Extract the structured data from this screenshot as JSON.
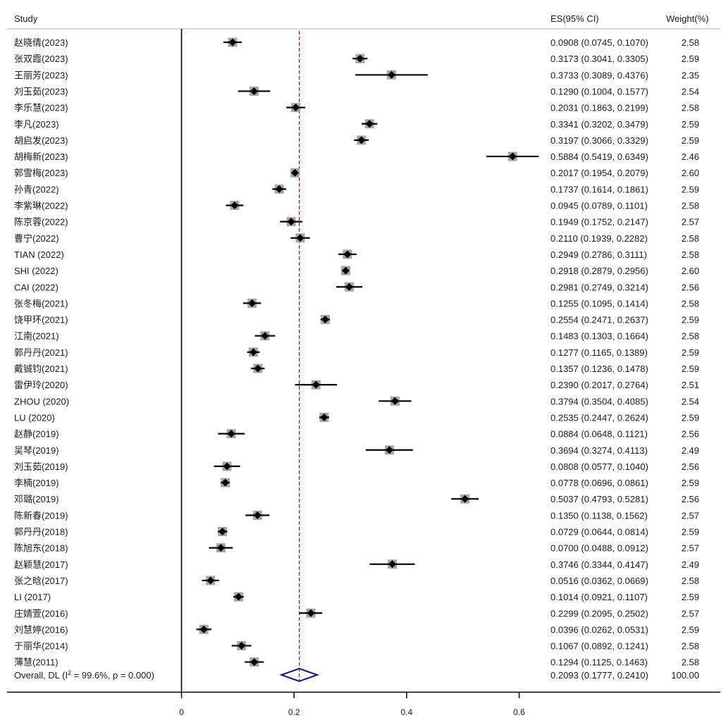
{
  "chart_data": {
    "type": "forest",
    "header": {
      "study": "Study",
      "es": "ES(95% CI)",
      "weight": "Weight(%)"
    },
    "x_ticks": [
      0,
      0.2,
      0.4,
      0.6
    ],
    "xlim": [
      0,
      0.65
    ],
    "reference_line": 0.2093,
    "studies": [
      {
        "label": "赵晓倩(2023)",
        "es": 0.0908,
        "lo": 0.0745,
        "hi": 0.107,
        "ci_text": "0.0908 (0.0745, 0.1070)",
        "weight": "2.58"
      },
      {
        "label": "张双霞(2023)",
        "es": 0.3173,
        "lo": 0.3041,
        "hi": 0.3305,
        "ci_text": "0.3173 (0.3041, 0.3305)",
        "weight": "2.59"
      },
      {
        "label": "王丽芳(2023)",
        "es": 0.3733,
        "lo": 0.3089,
        "hi": 0.4376,
        "ci_text": "0.3733 (0.3089, 0.4376)",
        "weight": "2.35"
      },
      {
        "label": "刘玉茹(2023)",
        "es": 0.129,
        "lo": 0.1004,
        "hi": 0.1577,
        "ci_text": "0.1290 (0.1004, 0.1577)",
        "weight": "2.54"
      },
      {
        "label": "李乐慧(2023)",
        "es": 0.2031,
        "lo": 0.1863,
        "hi": 0.2199,
        "ci_text": "0.2031 (0.1863, 0.2199)",
        "weight": "2.58"
      },
      {
        "label": "李凡(2023)",
        "es": 0.3341,
        "lo": 0.3202,
        "hi": 0.3479,
        "ci_text": "0.3341 (0.3202, 0.3479)",
        "weight": "2.59"
      },
      {
        "label": "胡启发(2023)",
        "es": 0.3197,
        "lo": 0.3066,
        "hi": 0.3329,
        "ci_text": "0.3197 (0.3066, 0.3329)",
        "weight": "2.59"
      },
      {
        "label": "胡梅新(2023)",
        "es": 0.5884,
        "lo": 0.5419,
        "hi": 0.6349,
        "ci_text": "0.5884 (0.5419, 0.6349)",
        "weight": "2.46"
      },
      {
        "label": "郭雪梅(2023)",
        "es": 0.2017,
        "lo": 0.1954,
        "hi": 0.2079,
        "ci_text": "0.2017 (0.1954, 0.2079)",
        "weight": "2.60"
      },
      {
        "label": "孙青(2022)",
        "es": 0.1737,
        "lo": 0.1614,
        "hi": 0.1861,
        "ci_text": "0.1737 (0.1614, 0.1861)",
        "weight": "2.59"
      },
      {
        "label": "李紫琳(2022)",
        "es": 0.0945,
        "lo": 0.0789,
        "hi": 0.1101,
        "ci_text": "0.0945 (0.0789, 0.1101)",
        "weight": "2.58"
      },
      {
        "label": "陈京蓉(2022)",
        "es": 0.1949,
        "lo": 0.1752,
        "hi": 0.2147,
        "ci_text": "0.1949 (0.1752, 0.2147)",
        "weight": "2.57"
      },
      {
        "label": "曹宁(2022)",
        "es": 0.211,
        "lo": 0.1939,
        "hi": 0.2282,
        "ci_text": "0.2110 (0.1939, 0.2282)",
        "weight": "2.58"
      },
      {
        "label": "TIAN (2022)",
        "es": 0.2949,
        "lo": 0.2786,
        "hi": 0.3111,
        "ci_text": "0.2949 (0.2786, 0.3111)",
        "weight": "2.58"
      },
      {
        "label": "SHI (2022)",
        "es": 0.2918,
        "lo": 0.2879,
        "hi": 0.2956,
        "ci_text": "0.2918 (0.2879, 0.2956)",
        "weight": "2.60"
      },
      {
        "label": "CAI (2022)",
        "es": 0.2981,
        "lo": 0.2749,
        "hi": 0.3214,
        "ci_text": "0.2981 (0.2749, 0.3214)",
        "weight": "2.56"
      },
      {
        "label": "张冬梅(2021)",
        "es": 0.1255,
        "lo": 0.1095,
        "hi": 0.1414,
        "ci_text": "0.1255 (0.1095, 0.1414)",
        "weight": "2.58"
      },
      {
        "label": "饶甲环(2021)",
        "es": 0.2554,
        "lo": 0.2471,
        "hi": 0.2637,
        "ci_text": "0.2554 (0.2471, 0.2637)",
        "weight": "2.59"
      },
      {
        "label": "江南(2021)",
        "es": 0.1483,
        "lo": 0.1303,
        "hi": 0.1664,
        "ci_text": "0.1483 (0.1303, 0.1664)",
        "weight": "2.58"
      },
      {
        "label": "郭丹丹(2021)",
        "es": 0.1277,
        "lo": 0.1165,
        "hi": 0.1389,
        "ci_text": "0.1277 (0.1165, 0.1389)",
        "weight": "2.59"
      },
      {
        "label": "戴铖钧(2021)",
        "es": 0.1357,
        "lo": 0.1236,
        "hi": 0.1478,
        "ci_text": "0.1357 (0.1236, 0.1478)",
        "weight": "2.59"
      },
      {
        "label": "雷伊玲(2020)",
        "es": 0.239,
        "lo": 0.2017,
        "hi": 0.2764,
        "ci_text": "0.2390 (0.2017, 0.2764)",
        "weight": "2.51"
      },
      {
        "label": "ZHOU (2020)",
        "es": 0.3794,
        "lo": 0.3504,
        "hi": 0.4085,
        "ci_text": "0.3794 (0.3504, 0.4085)",
        "weight": "2.54"
      },
      {
        "label": "LU (2020)",
        "es": 0.2535,
        "lo": 0.2447,
        "hi": 0.2624,
        "ci_text": "0.2535 (0.2447, 0.2624)",
        "weight": "2.59"
      },
      {
        "label": "赵静(2019)",
        "es": 0.0884,
        "lo": 0.0648,
        "hi": 0.1121,
        "ci_text": "0.0884 (0.0648, 0.1121)",
        "weight": "2.56"
      },
      {
        "label": "吴琴(2019)",
        "es": 0.3694,
        "lo": 0.3274,
        "hi": 0.4113,
        "ci_text": "0.3694 (0.3274, 0.4113)",
        "weight": "2.49"
      },
      {
        "label": "刘玉茹(2019)",
        "es": 0.0808,
        "lo": 0.0577,
        "hi": 0.104,
        "ci_text": "0.0808 (0.0577, 0.1040)",
        "weight": "2.56"
      },
      {
        "label": "李楠(2019)",
        "es": 0.0778,
        "lo": 0.0696,
        "hi": 0.0861,
        "ci_text": "0.0778 (0.0696, 0.0861)",
        "weight": "2.59"
      },
      {
        "label": "邓璐(2019)",
        "es": 0.5037,
        "lo": 0.4793,
        "hi": 0.5281,
        "ci_text": "0.5037 (0.4793, 0.5281)",
        "weight": "2.56"
      },
      {
        "label": "陈新春(2019)",
        "es": 0.135,
        "lo": 0.1138,
        "hi": 0.1562,
        "ci_text": "0.1350 (0.1138, 0.1562)",
        "weight": "2.57"
      },
      {
        "label": "郭丹丹(2018)",
        "es": 0.0729,
        "lo": 0.0644,
        "hi": 0.0814,
        "ci_text": "0.0729 (0.0644, 0.0814)",
        "weight": "2.59"
      },
      {
        "label": "陈旭东(2018)",
        "es": 0.07,
        "lo": 0.0488,
        "hi": 0.0912,
        "ci_text": "0.0700 (0.0488, 0.0912)",
        "weight": "2.57"
      },
      {
        "label": "赵颖慧(2017)",
        "es": 0.3746,
        "lo": 0.3344,
        "hi": 0.4147,
        "ci_text": "0.3746 (0.3344, 0.4147)",
        "weight": "2.49"
      },
      {
        "label": "张之晗(2017)",
        "es": 0.0516,
        "lo": 0.0362,
        "hi": 0.0669,
        "ci_text": "0.0516 (0.0362, 0.0669)",
        "weight": "2.58"
      },
      {
        "label": "LI (2017)",
        "es": 0.1014,
        "lo": 0.0921,
        "hi": 0.1107,
        "ci_text": "0.1014 (0.0921, 0.1107)",
        "weight": "2.59"
      },
      {
        "label": "庄婧萱(2016)",
        "es": 0.2299,
        "lo": 0.2095,
        "hi": 0.2502,
        "ci_text": "0.2299 (0.2095, 0.2502)",
        "weight": "2.57"
      },
      {
        "label": "刘慧婷(2016)",
        "es": 0.0396,
        "lo": 0.0262,
        "hi": 0.0531,
        "ci_text": "0.0396 (0.0262, 0.0531)",
        "weight": "2.59"
      },
      {
        "label": "于丽华(2014)",
        "es": 0.1067,
        "lo": 0.0892,
        "hi": 0.1241,
        "ci_text": "0.1067 (0.0892, 0.1241)",
        "weight": "2.58"
      },
      {
        "label": "薄慧(2011)",
        "es": 0.1294,
        "lo": 0.1125,
        "hi": 0.1463,
        "ci_text": "0.1294 (0.1125, 0.1463)",
        "weight": "2.58"
      }
    ],
    "overall": {
      "label_prefix": "Overall, DL (I",
      "label_sup": "2",
      "label_suffix": " = 99.6%, p = 0.000)",
      "es": 0.2093,
      "lo": 0.1777,
      "hi": 0.241,
      "ci_text": "0.2093 (0.1777, 0.2410)",
      "weight": "100.00"
    },
    "colors": {
      "marker": "#000000",
      "weight_box": "#a6a6a6",
      "ci_line": "#000000",
      "reference_line": "#8b1a1a",
      "overall_diamond": "#1f1f6e",
      "axis": "#000000",
      "header_rule": "#c8c8c8"
    }
  }
}
